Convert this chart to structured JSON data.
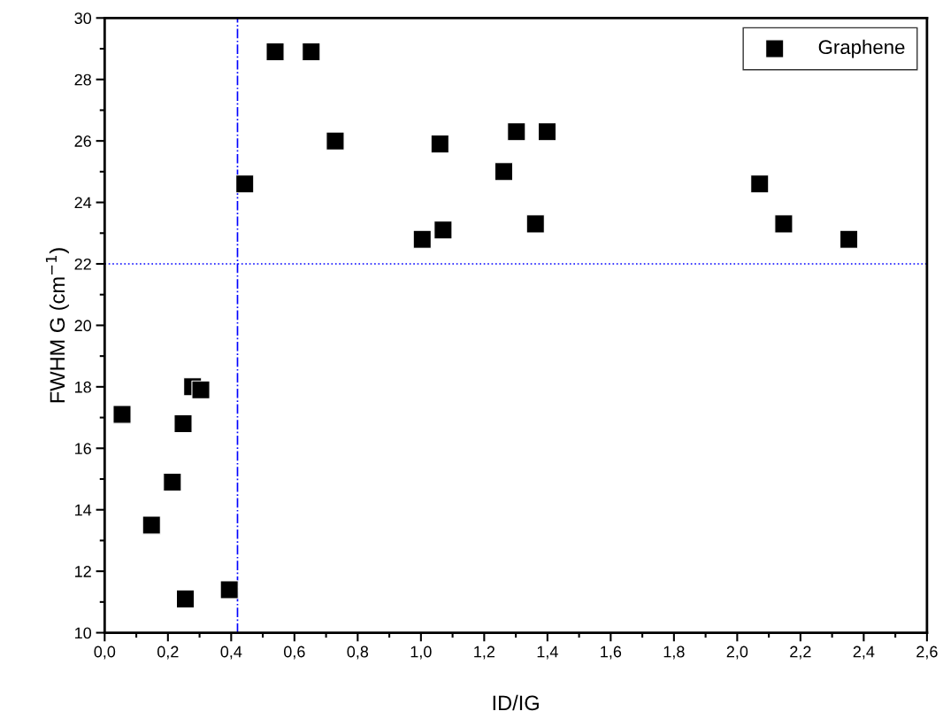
{
  "chart_data": {
    "type": "scatter",
    "xlabel": "ID/IG",
    "ylabel": "FWHM G (cm$^{−1}$)",
    "xlim": [
      0,
      2.6
    ],
    "ylim": [
      10,
      30
    ],
    "xticks": [
      {
        "value": 0,
        "label": "0,0"
      },
      {
        "value": 0.2,
        "label": "0,2"
      },
      {
        "value": 0.4,
        "label": "0,4"
      },
      {
        "value": 0.6,
        "label": "0,6"
      },
      {
        "value": 0.8,
        "label": "0,8"
      },
      {
        "value": 1.0,
        "label": "1,0"
      },
      {
        "value": 1.2,
        "label": "1,2"
      },
      {
        "value": 1.4,
        "label": "1,4"
      },
      {
        "value": 1.6,
        "label": "1,6"
      },
      {
        "value": 1.8,
        "label": "1,8"
      },
      {
        "value": 2.0,
        "label": "2,0"
      },
      {
        "value": 2.2,
        "label": "2,2"
      },
      {
        "value": 2.4,
        "label": "2,4"
      },
      {
        "value": 2.6,
        "label": "2,6"
      }
    ],
    "yticks": [
      10,
      12,
      14,
      16,
      18,
      20,
      22,
      24,
      26,
      28,
      30
    ],
    "marker": "square",
    "legend": "top right",
    "grid": false,
    "series": [
      {
        "name": "Graphene",
        "color": "#000000",
        "x": [
          0.055,
          0.148,
          0.214,
          0.248,
          0.278,
          0.304,
          0.255,
          0.394,
          0.443,
          0.539,
          0.653,
          0.729,
          1.004,
          1.06,
          1.07,
          1.262,
          1.302,
          1.362,
          1.399,
          2.071,
          2.147,
          2.353
        ],
        "values": [
          17.1,
          13.5,
          14.9,
          16.8,
          18.0,
          17.9,
          11.1,
          11.4,
          24.6,
          28.9,
          28.9,
          26.0,
          22.8,
          25.9,
          23.1,
          25.0,
          26.3,
          23.3,
          26.3,
          24.6,
          23.3,
          22.8
        ]
      }
    ],
    "ref_lines": [
      {
        "axis": "x",
        "value": 0.42,
        "color": "#0000ff",
        "line_style": "dashdot"
      },
      {
        "axis": "y",
        "value": 22,
        "color": "#0000ff",
        "line_style": "dotted"
      }
    ]
  }
}
